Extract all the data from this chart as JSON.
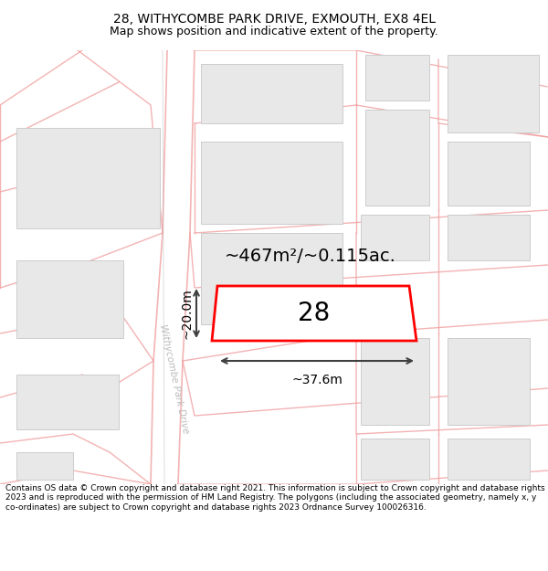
{
  "title_line1": "28, WITHYCOMBE PARK DRIVE, EXMOUTH, EX8 4EL",
  "title_line2": "Map shows position and indicative extent of the property.",
  "footer_text": "Contains OS data © Crown copyright and database right 2021. This information is subject to Crown copyright and database rights 2023 and is reproduced with the permission of HM Land Registry. The polygons (including the associated geometry, namely x, y co-ordinates) are subject to Crown copyright and database rights 2023 Ordnance Survey 100026316.",
  "area_label": "~467m²/~0.115ac.",
  "width_label": "~37.6m",
  "height_label": "~20.0m",
  "plot_number": "28",
  "road_label": "Withycombe Park Drive",
  "map_bg": "#f9f9f9",
  "building_color": "#e8e8e8",
  "building_edge": "#cccccc",
  "plot_outline_color": "#ff0000",
  "dim_line_color": "#404040",
  "street_line_color": "#f0a0a0",
  "gray_line_color": "#bbbbbb",
  "title_fontsize": 10,
  "subtitle_fontsize": 9,
  "footer_fontsize": 6.5,
  "road_label_color": "#bbbbbb",
  "plot_fill_alpha": 0.0
}
